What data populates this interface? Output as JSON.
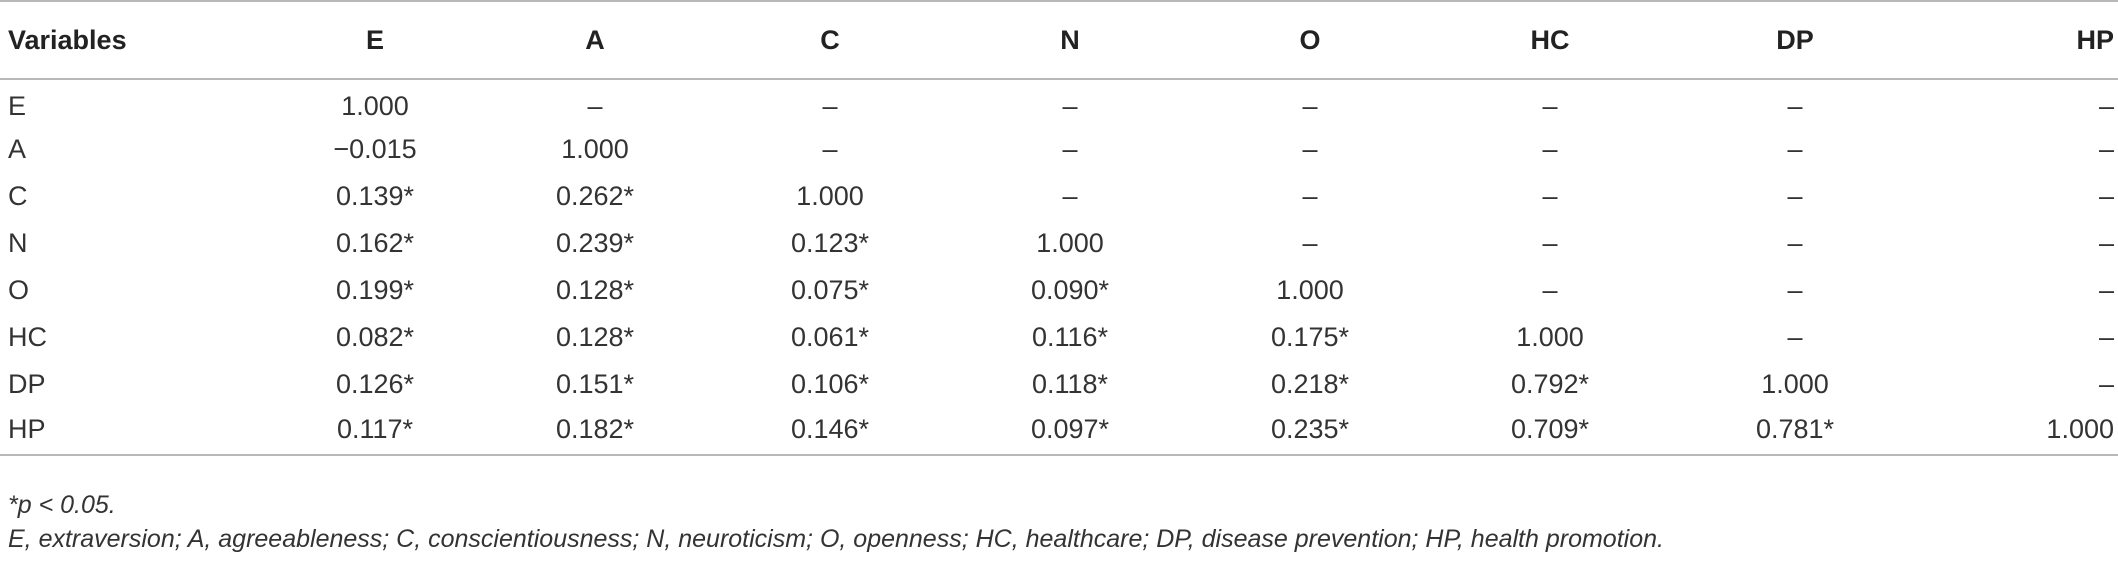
{
  "table": {
    "headers": [
      "Variables",
      "E",
      "A",
      "C",
      "N",
      "O",
      "HC",
      "DP",
      "HP"
    ],
    "rows": [
      [
        "E",
        "1.000",
        "–",
        "–",
        "–",
        "–",
        "–",
        "–",
        "–"
      ],
      [
        "A",
        "−0.015",
        "1.000",
        "–",
        "–",
        "–",
        "–",
        "–",
        "–"
      ],
      [
        "C",
        "0.139*",
        "0.262*",
        "1.000",
        "–",
        "–",
        "–",
        "–",
        "–"
      ],
      [
        "N",
        "0.162*",
        "0.239*",
        "0.123*",
        "1.000",
        "–",
        "–",
        "–",
        "–"
      ],
      [
        "O",
        "0.199*",
        "0.128*",
        "0.075*",
        "0.090*",
        "1.000",
        "–",
        "–",
        "–"
      ],
      [
        "HC",
        "0.082*",
        "0.128*",
        "0.061*",
        "0.116*",
        "0.175*",
        "1.000",
        "–",
        "–"
      ],
      [
        "DP",
        "0.126*",
        "0.151*",
        "0.106*",
        "0.118*",
        "0.218*",
        "0.792*",
        "1.000",
        "–"
      ],
      [
        "HP",
        "0.117*",
        "0.182*",
        "0.146*",
        "0.097*",
        "0.235*",
        "0.709*",
        "0.781*",
        "1.000"
      ]
    ]
  },
  "notes": {
    "significance": "*p < 0.05.",
    "abbreviations": "E, extraversion; A, agreeableness; C, conscientiousness; N, neuroticism; O, openness; HC, healthcare; DP, disease prevention; HP, health promotion."
  }
}
